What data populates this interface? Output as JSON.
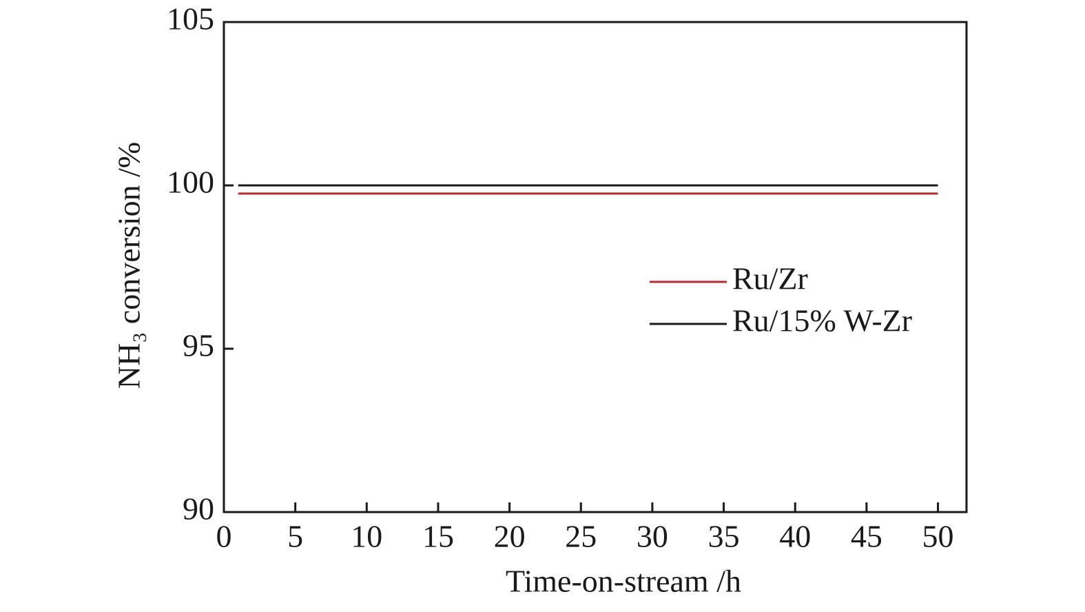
{
  "chart_data": {
    "type": "line",
    "x_label": "Time-on-stream /h",
    "y_label": "NH₃ conversion /%",
    "x": [
      1,
      50
    ],
    "series": [
      {
        "name": "Ru/Zr",
        "color": "#c0272d",
        "values": [
          99.75,
          99.75
        ]
      },
      {
        "name": "Ru/15% W-Zr",
        "color": "#1a1a1a",
        "values": [
          100,
          100
        ]
      }
    ],
    "xlim": [
      0,
      52
    ],
    "xticks": [
      0,
      5,
      10,
      15,
      20,
      25,
      30,
      35,
      40,
      45,
      50
    ],
    "ylim": [
      90,
      105
    ],
    "yticks": [
      90,
      95,
      100,
      105
    ],
    "grid": false,
    "legend": "right"
  }
}
